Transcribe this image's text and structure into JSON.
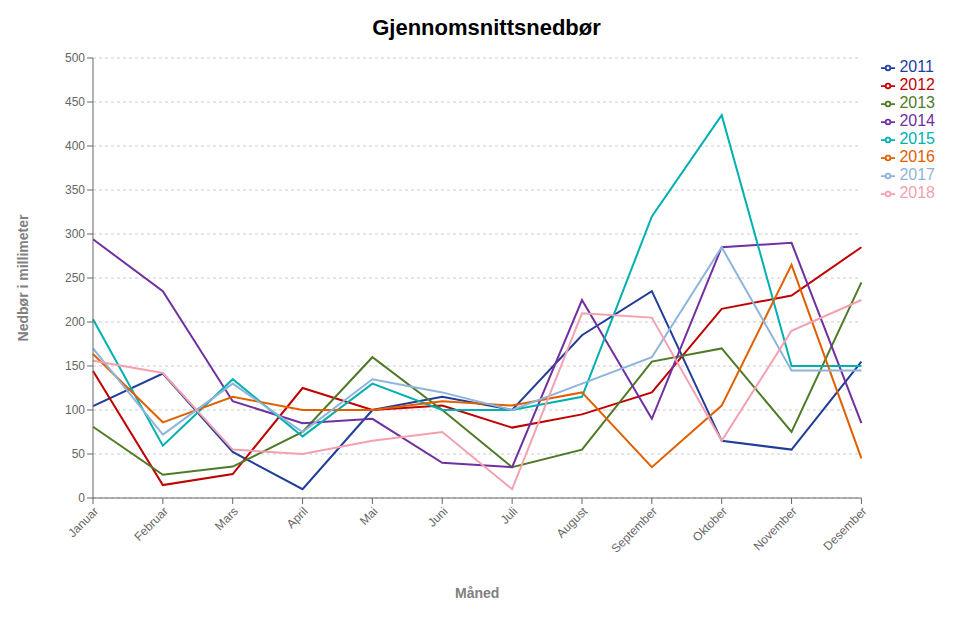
{
  "chart_data": {
    "type": "line",
    "title": "Gjennomsnittsnedbør",
    "xlabel": "Måned",
    "ylabel": "Nedbør i millimeter",
    "categories": [
      "Januar",
      "Februar",
      "Mars",
      "April",
      "Mai",
      "Juni",
      "Juli",
      "August",
      "September",
      "Oktober",
      "November",
      "Desember"
    ],
    "series": [
      {
        "name": "2011",
        "color": "#1F3D99",
        "values": [
          104.5,
          141.5,
          52.4,
          10,
          100,
          115,
          100,
          185,
          235,
          65,
          55,
          155
        ]
      },
      {
        "name": "2012",
        "color": "#C00000",
        "values": [
          144.4,
          14.7,
          27.2,
          125,
          100,
          105,
          80,
          95,
          120,
          215,
          230,
          285
        ]
      },
      {
        "name": "2013",
        "color": "#4F7A28",
        "values": [
          81,
          26.4,
          35.7,
          75,
          160,
          100,
          35,
          55,
          155,
          170,
          75,
          245
        ]
      },
      {
        "name": "2014",
        "color": "#7030A0",
        "values": [
          294,
          235,
          110,
          85,
          90,
          40,
          35,
          225,
          90,
          285,
          290,
          85
        ]
      },
      {
        "name": "2015",
        "color": "#00B0B0",
        "values": [
          203.1,
          59.5,
          135,
          70,
          130,
          100,
          100,
          115,
          320,
          435,
          150,
          150
        ]
      },
      {
        "name": "2016",
        "color": "#E06000",
        "values": [
          163.7,
          86,
          115,
          100,
          100,
          110,
          105,
          120,
          35,
          105,
          265,
          45
        ]
      },
      {
        "name": "2017",
        "color": "#8DB4D9",
        "values": [
          170,
          72,
          130,
          75,
          135,
          120,
          100,
          130,
          160,
          285,
          145,
          145
        ]
      },
      {
        "name": "2018",
        "color": "#F4A0B0",
        "values": [
          156,
          142,
          55,
          50,
          65,
          75,
          10,
          210,
          205,
          65,
          190,
          225
        ]
      }
    ],
    "ylim": [
      0,
      500
    ],
    "yticks": [
      0,
      50,
      100,
      150,
      200,
      250,
      300,
      350,
      400,
      450,
      500
    ],
    "grid": true,
    "legend": "right"
  }
}
